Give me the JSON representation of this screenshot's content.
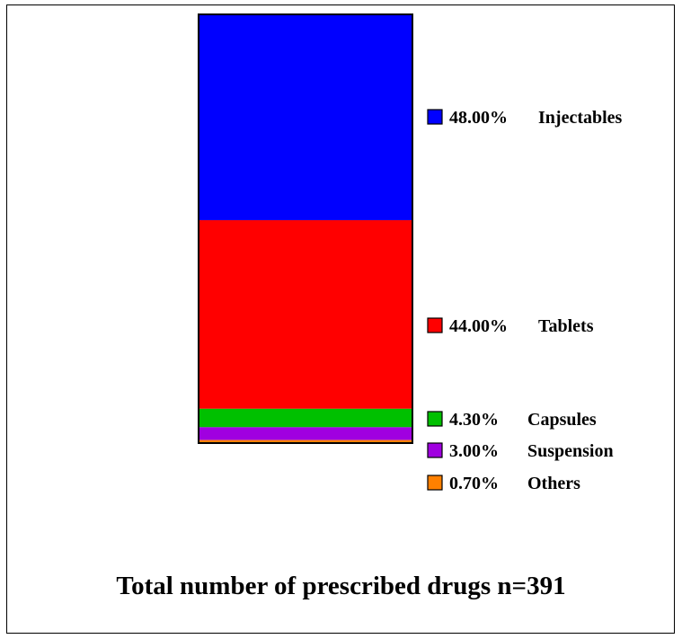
{
  "chart_data": {
    "type": "bar",
    "stacked": true,
    "title": "",
    "xlabel": "Total number of prescribed drugs n=391",
    "ylabel": "",
    "unit": "%",
    "series": [
      {
        "name": "Injectables",
        "value": 48.0,
        "label": "48.00%",
        "color": "#0000ff"
      },
      {
        "name": "Tablets",
        "value": 44.0,
        "label": "44.00%",
        "color": "#ff0000"
      },
      {
        "name": "Capsules",
        "value": 4.3,
        "label": "4.30%",
        "color": "#00c000"
      },
      {
        "name": "Suspension",
        "value": 3.0,
        "label": "3.00%",
        "color": "#a000e0"
      },
      {
        "name": "Others",
        "value": 0.7,
        "label": "0.70%",
        "color": "#ff8000"
      }
    ],
    "legend_position": "right"
  }
}
